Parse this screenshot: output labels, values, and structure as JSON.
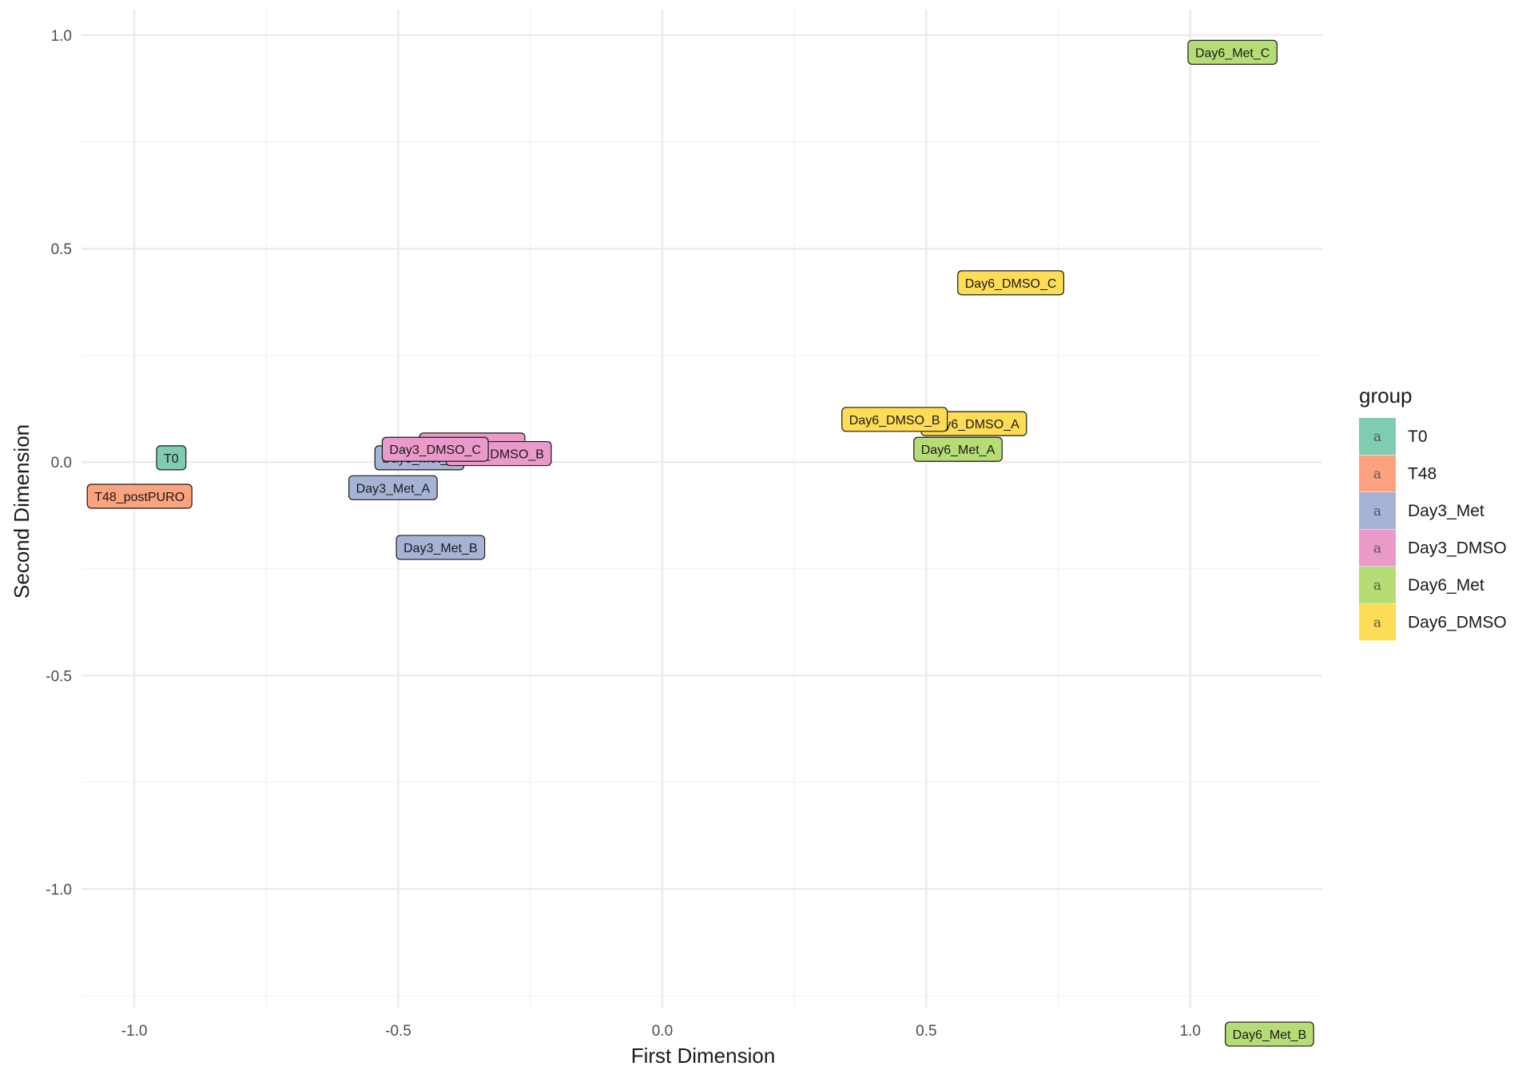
{
  "chart_data": {
    "type": "scatter",
    "title": "",
    "xlabel": "First Dimension",
    "ylabel": "Second Dimension",
    "xlim": [
      -1.1,
      1.25
    ],
    "ylim": [
      -1.28,
      1.06
    ],
    "xticks": [
      -1.0,
      -0.5,
      0.0,
      0.5,
      1.0
    ],
    "xtick_labels": [
      "-1.0",
      "-0.5",
      "0.0",
      "0.5",
      "1.0"
    ],
    "yticks": [
      1.0,
      0.5,
      0.0,
      -0.5,
      -1.0
    ],
    "ytick_labels": [
      "1.0",
      "0.5",
      "0.0",
      "-0.5",
      "-1.0"
    ],
    "grid": true,
    "legend": {
      "title": "group",
      "position": "right",
      "key_glyph": "a",
      "entries": [
        {
          "name": "T0",
          "color": "#7FCCB3"
        },
        {
          "name": "T48",
          "color": "#FCA27E"
        },
        {
          "name": "Day3_Met",
          "color": "#A7B3D6"
        },
        {
          "name": "Day3_DMSO",
          "color": "#E99AC8"
        },
        {
          "name": "Day6_Met",
          "color": "#B6DC76"
        },
        {
          "name": "Day6_DMSO",
          "color": "#FFDC55"
        }
      ]
    },
    "points": [
      {
        "label": "T0",
        "group": "T0",
        "x": -0.93,
        "y": 0.01
      },
      {
        "label": "T48_postPURO",
        "group": "T48",
        "x": -0.99,
        "y": -0.08
      },
      {
        "label": "Day3_Met_C",
        "group": "Day3_Met",
        "x": -0.46,
        "y": 0.01
      },
      {
        "label": "Day3_DMSO_A",
        "group": "Day3_DMSO",
        "x": -0.36,
        "y": 0.04
      },
      {
        "label": "Day3_DMSO_B",
        "group": "Day3_DMSO",
        "x": -0.31,
        "y": 0.02
      },
      {
        "label": "Day3_DMSO_C",
        "group": "Day3_DMSO",
        "x": -0.43,
        "y": 0.03
      },
      {
        "label": "Day3_Met_A",
        "group": "Day3_Met",
        "x": -0.51,
        "y": -0.06
      },
      {
        "label": "Day3_Met_B",
        "group": "Day3_Met",
        "x": -0.42,
        "y": -0.2
      },
      {
        "label": "Day6_Met_C",
        "group": "Day6_Met",
        "x": 1.08,
        "y": 0.96
      },
      {
        "label": "Day6_DMSO_C",
        "group": "Day6_DMSO",
        "x": 0.66,
        "y": 0.42
      },
      {
        "label": "Day6_DMSO_A",
        "group": "Day6_DMSO",
        "x": 0.59,
        "y": 0.09
      },
      {
        "label": "Day6_DMSO_B",
        "group": "Day6_DMSO",
        "x": 0.44,
        "y": 0.1
      },
      {
        "label": "Day6_Met_A",
        "group": "Day6_Met",
        "x": 0.56,
        "y": 0.03
      },
      {
        "label": "Day6_Met_B",
        "group": "Day6_Met",
        "x": 1.15,
        "y": -1.34
      }
    ]
  }
}
